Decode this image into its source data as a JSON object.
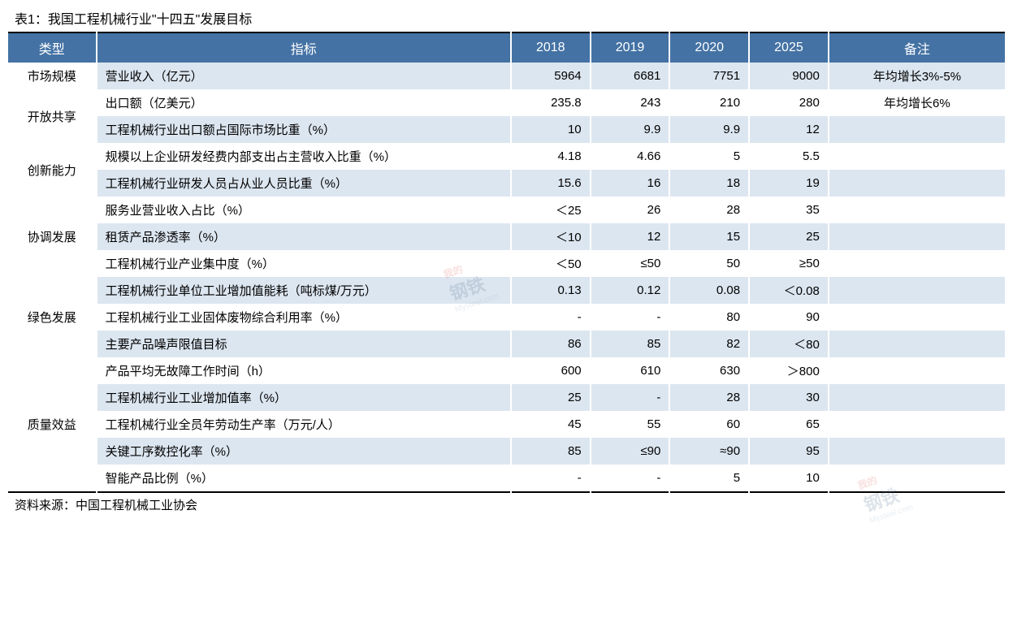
{
  "title": "表1：我国工程机械行业\"十四五\"发展目标",
  "source": "资料来源：中国工程机械工业协会",
  "header_bg": "#4472a4",
  "header_fg": "#ffffff",
  "row_even_bg": "#dce6f0",
  "row_odd_bg": "#ffffff",
  "columns": {
    "type": "类型",
    "indicator": "指标",
    "y2018": "2018",
    "y2019": "2019",
    "y2020": "2020",
    "y2025": "2025",
    "note": "备注"
  },
  "groups": [
    {
      "type": "市场规模",
      "rows": [
        {
          "indicator": "营业收入（亿元）",
          "y2018": "5964",
          "y2019": "6681",
          "y2020": "7751",
          "y2025": "9000",
          "note": "年均增长3%-5%"
        }
      ]
    },
    {
      "type": "开放共享",
      "rows": [
        {
          "indicator": "出口额（亿美元）",
          "y2018": "235.8",
          "y2019": "243",
          "y2020": "210",
          "y2025": "280",
          "note": "年均增长6%"
        },
        {
          "indicator": "工程机械行业出口额占国际市场比重（%）",
          "y2018": "10",
          "y2019": "9.9",
          "y2020": "9.9",
          "y2025": "12",
          "note": ""
        }
      ]
    },
    {
      "type": "创新能力",
      "rows": [
        {
          "indicator": "规模以上企业研发经费内部支出占主营收入比重（%）",
          "y2018": "4.18",
          "y2019": "4.66",
          "y2020": "5",
          "y2025": "5.5",
          "note": ""
        },
        {
          "indicator": "工程机械行业研发人员占从业人员比重（%）",
          "y2018": "15.6",
          "y2019": "16",
          "y2020": "18",
          "y2025": "19",
          "note": ""
        }
      ]
    },
    {
      "type": "协调发展",
      "rows": [
        {
          "indicator": "服务业营业收入占比（%）",
          "y2018": "＜25",
          "y2019": "26",
          "y2020": "28",
          "y2025": "35",
          "note": ""
        },
        {
          "indicator": "租赁产品渗透率（%）",
          "y2018": "＜10",
          "y2019": "12",
          "y2020": "15",
          "y2025": "25",
          "note": ""
        },
        {
          "indicator": "工程机械行业产业集中度（%）",
          "y2018": "＜50",
          "y2019": "≤50",
          "y2020": "50",
          "y2025": "≥50",
          "note": ""
        }
      ]
    },
    {
      "type": "绿色发展",
      "rows": [
        {
          "indicator": "工程机械行业单位工业增加值能耗（吨标煤/万元）",
          "y2018": "0.13",
          "y2019": "0.12",
          "y2020": "0.08",
          "y2025": "＜0.08",
          "note": ""
        },
        {
          "indicator": "工程机械行业工业固体废物综合利用率（%）",
          "y2018": "-",
          "y2019": "-",
          "y2020": "80",
          "y2025": "90",
          "note": ""
        },
        {
          "indicator": "主要产品噪声限值目标",
          "y2018": "86",
          "y2019": "85",
          "y2020": "82",
          "y2025": "＜80",
          "note": ""
        }
      ]
    },
    {
      "type": "质量效益",
      "rows": [
        {
          "indicator": "产品平均无故障工作时间（h）",
          "y2018": "600",
          "y2019": "610",
          "y2020": "630",
          "y2025": "＞800",
          "note": ""
        },
        {
          "indicator": "工程机械行业工业增加值率（%）",
          "y2018": "25",
          "y2019": "-",
          "y2020": "28",
          "y2025": "30",
          "note": ""
        },
        {
          "indicator": "工程机械行业全员年劳动生产率（万元/人）",
          "y2018": "45",
          "y2019": "55",
          "y2020": "60",
          "y2025": "65",
          "note": ""
        },
        {
          "indicator": "关键工序数控化率（%）",
          "y2018": "85",
          "y2019": "≤90",
          "y2020": "≈90",
          "y2025": "95",
          "note": ""
        },
        {
          "indicator": "智能产品比例（%）",
          "y2018": "-",
          "y2019": "-",
          "y2020": "5",
          "y2025": "10",
          "note": ""
        }
      ]
    }
  ],
  "watermark": {
    "red": "我的",
    "main": "钢铁",
    "sub": "Mysteel.com"
  }
}
